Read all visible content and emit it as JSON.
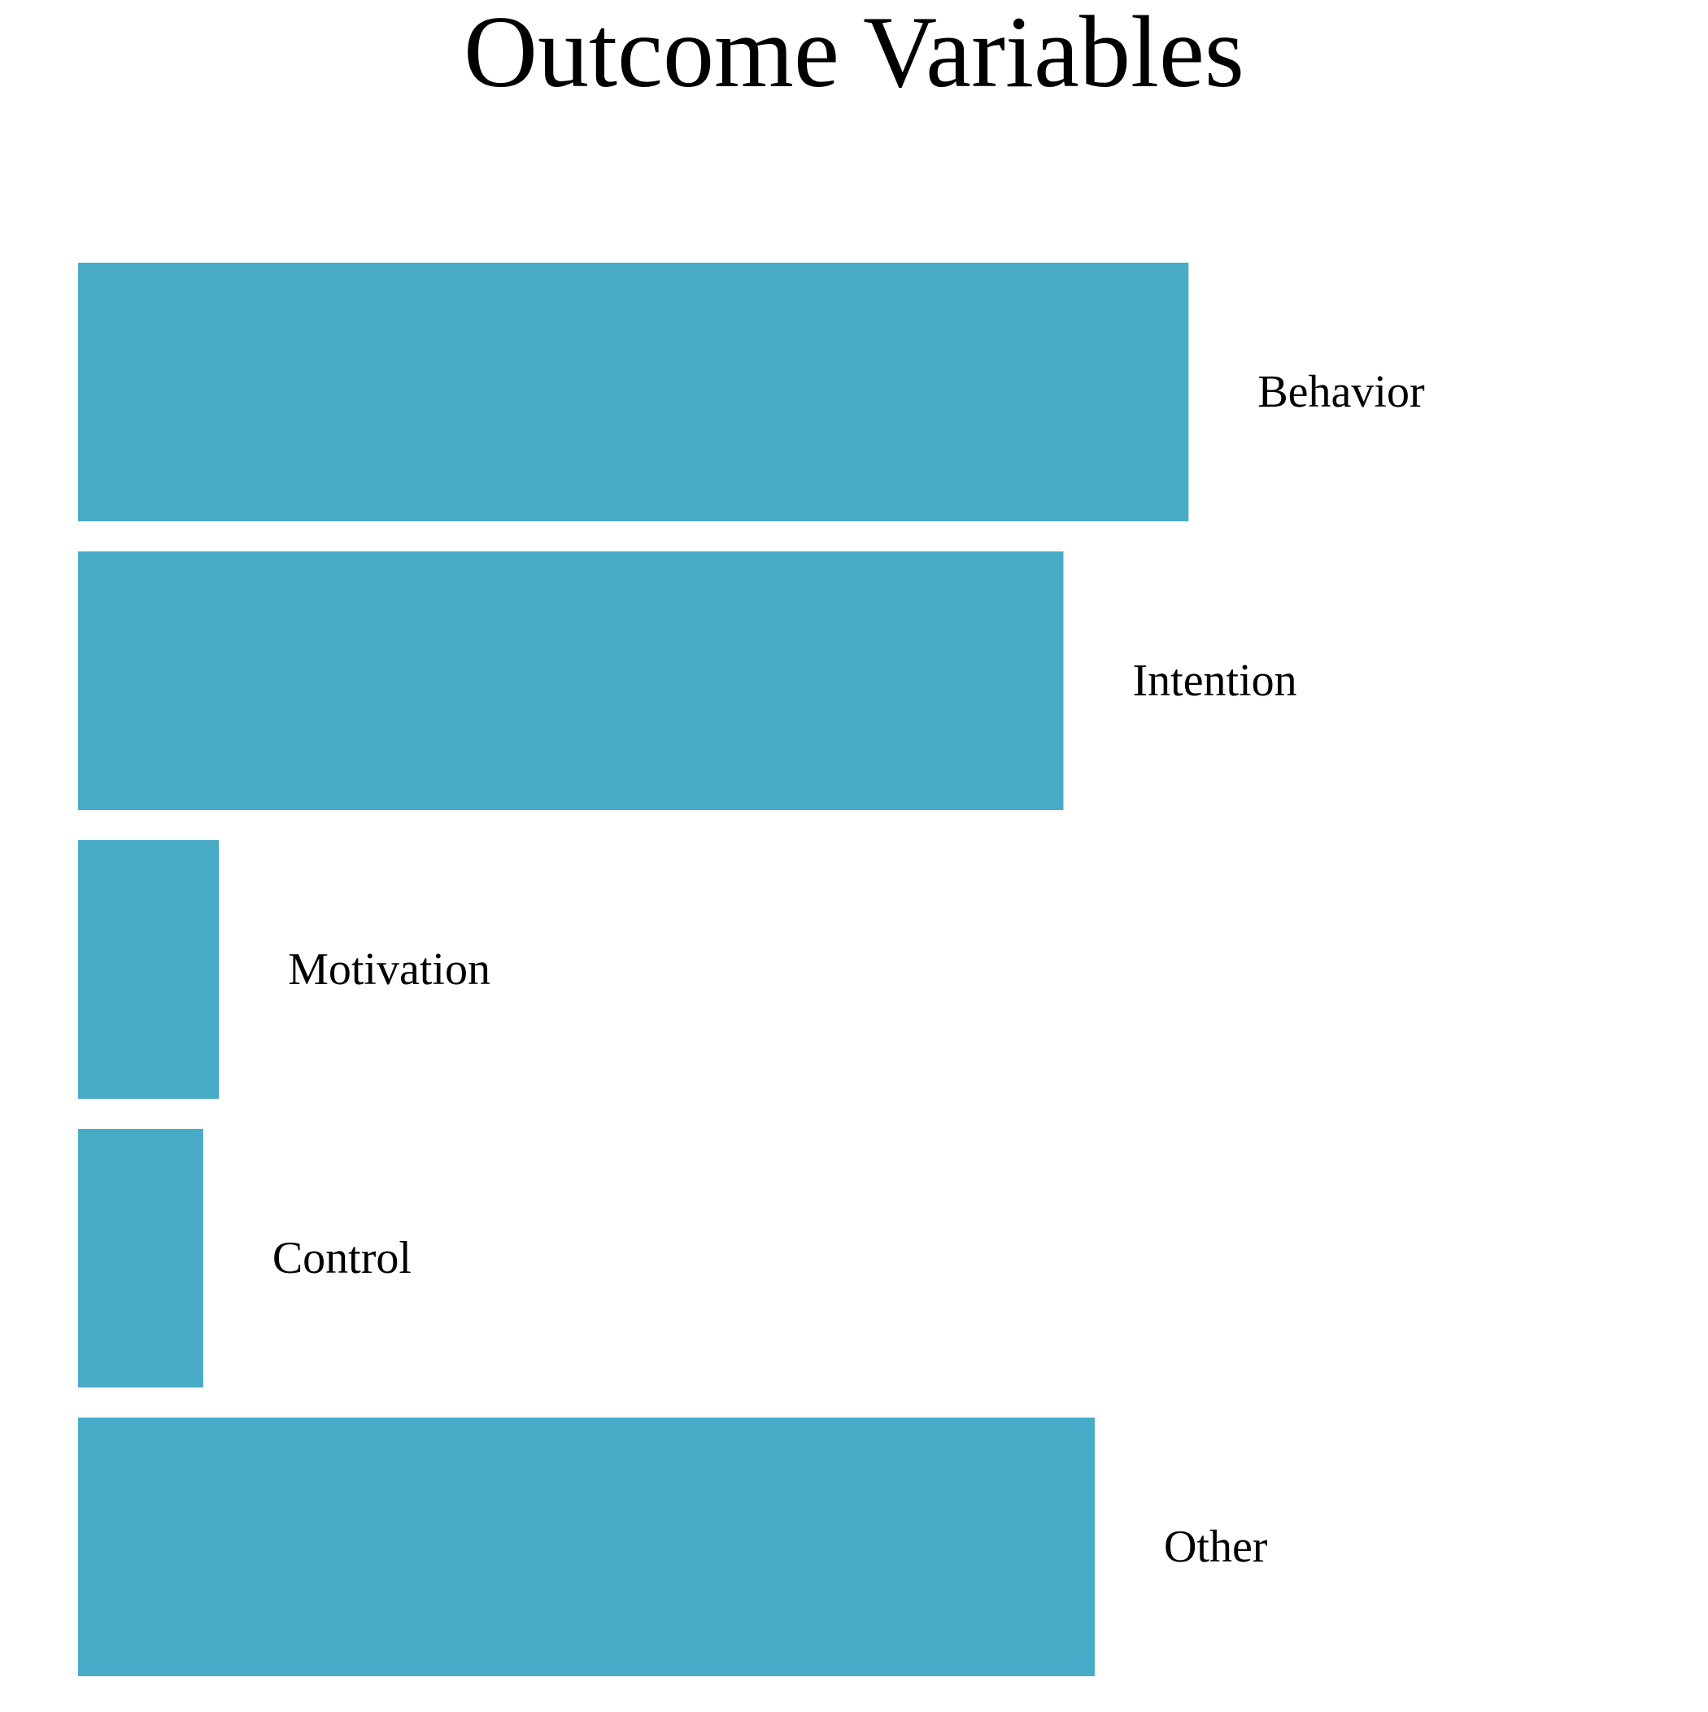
{
  "chart_data": {
    "type": "bar",
    "orientation": "horizontal",
    "title": "Outcome Variables",
    "xlabel": "",
    "ylabel": "",
    "categories": [
      "Behavior",
      "Intention",
      "Motivation",
      "Control",
      "Other"
    ],
    "values": [
      71,
      63,
      9,
      8,
      65
    ],
    "xlim": [
      0,
      100
    ],
    "grid": false,
    "axes_visible": false,
    "colors": {
      "bar": "#48abc8",
      "text": "#000000",
      "background": "#ffffff"
    }
  }
}
